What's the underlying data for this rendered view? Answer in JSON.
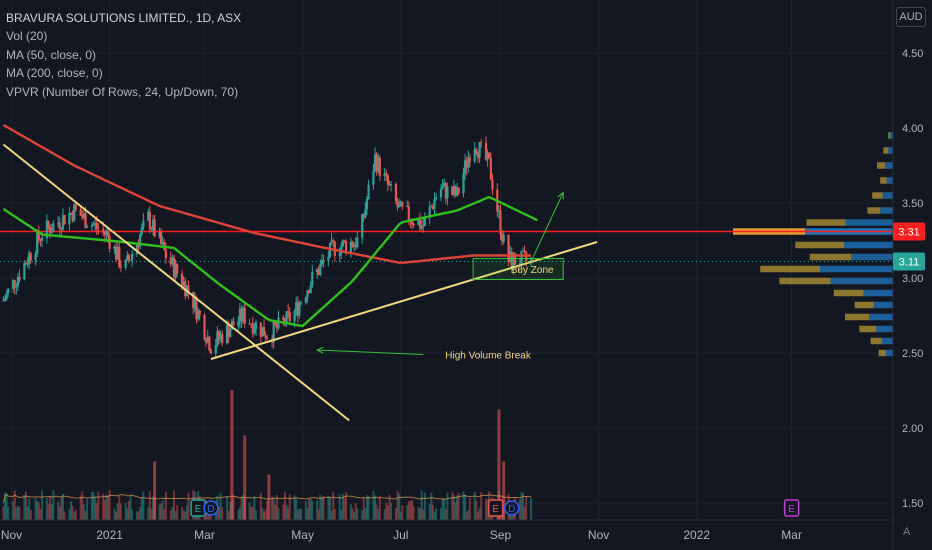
{
  "legend": {
    "title": "BRAVURA SOLUTIONS LIMITED., 1D, ASX",
    "lines": [
      "Vol (20)",
      "MA (50, close, 0)",
      "MA (200, close, 0)",
      "VPVR (Number Of Rows, 24, Up/Down, 70)"
    ]
  },
  "currency": "AUD",
  "auto_label": "A",
  "colors": {
    "background": "#131722",
    "up": "#26a69a",
    "down": "#ef5350",
    "ma50": "#2ec21a",
    "ma200": "#e04538",
    "drawing": "#f2d77e",
    "resistance": "#ff1f1f",
    "annotation_green": "#35c335",
    "vpvr_up": "#1e78c2",
    "vpvr_down": "#c4a032",
    "vpvr_poc": "#f0a030"
  },
  "chart_data": {
    "type": "candlestick",
    "x_ticks": [
      "Nov",
      "2021",
      "Mar",
      "May",
      "Jul",
      "Sep",
      "Nov",
      "2022",
      "Mar"
    ],
    "y_ticks": [
      "4.50",
      "4.00",
      "3.50",
      "3.00",
      "2.50",
      "2.00",
      "1.50"
    ],
    "ylim": [
      1.42,
      4.82
    ],
    "price_labels": [
      {
        "text": "3.31",
        "value": 3.31,
        "color": "#ff1f1f"
      },
      {
        "text": "3.11",
        "value": 3.11,
        "color": "#26a69a"
      }
    ],
    "horizontal_line": 3.31,
    "last_price": 3.11,
    "key_points": [
      {
        "date": "2020-10-27",
        "close": 2.85
      },
      {
        "date": "2020-11-20",
        "close": 3.3
      },
      {
        "date": "2020-12-10",
        "close": 3.45
      },
      {
        "date": "2020-12-31",
        "close": 3.28
      },
      {
        "date": "2021-01-10",
        "close": 3.05
      },
      {
        "date": "2021-01-25",
        "close": 3.4
      },
      {
        "date": "2021-02-05",
        "close": 3.15
      },
      {
        "date": "2021-02-20",
        "close": 2.9
      },
      {
        "date": "2021-03-05",
        "close": 2.55
      },
      {
        "date": "2021-03-25",
        "close": 2.75
      },
      {
        "date": "2021-04-10",
        "close": 2.62
      },
      {
        "date": "2021-04-25",
        "close": 2.75
      },
      {
        "date": "2021-05-05",
        "close": 2.96
      },
      {
        "date": "2021-05-20",
        "close": 3.2
      },
      {
        "date": "2021-06-05",
        "close": 3.25
      },
      {
        "date": "2021-06-15",
        "close": 3.8
      },
      {
        "date": "2021-06-30",
        "close": 3.45
      },
      {
        "date": "2021-07-15",
        "close": 3.35
      },
      {
        "date": "2021-07-25",
        "close": 3.6
      },
      {
        "date": "2021-08-05",
        "close": 3.55
      },
      {
        "date": "2021-08-15",
        "close": 3.92
      },
      {
        "date": "2021-08-25",
        "close": 3.75
      },
      {
        "date": "2021-09-05",
        "close": 3.12
      },
      {
        "date": "2021-09-20",
        "close": 3.11
      }
    ],
    "ma50": [
      {
        "date": "2020-10-27",
        "value": 3.46
      },
      {
        "date": "2020-11-20",
        "value": 3.29
      },
      {
        "date": "2021-01-10",
        "value": 3.24
      },
      {
        "date": "2021-02-10",
        "value": 3.2
      },
      {
        "date": "2021-03-10",
        "value": 2.96
      },
      {
        "date": "2021-04-10",
        "value": 2.72
      },
      {
        "date": "2021-05-01",
        "value": 2.68
      },
      {
        "date": "2021-06-01",
        "value": 2.98
      },
      {
        "date": "2021-07-01",
        "value": 3.37
      },
      {
        "date": "2021-08-05",
        "value": 3.45
      },
      {
        "date": "2021-08-25",
        "value": 3.54
      },
      {
        "date": "2021-09-25",
        "value": 3.38
      }
    ],
    "ma200": [
      {
        "date": "2020-10-27",
        "value": 4.02
      },
      {
        "date": "2020-12-10",
        "value": 3.75
      },
      {
        "date": "2021-02-01",
        "value": 3.48
      },
      {
        "date": "2021-04-01",
        "value": 3.3
      },
      {
        "date": "2021-05-15",
        "value": 3.2
      },
      {
        "date": "2021-07-01",
        "value": 3.1
      },
      {
        "date": "2021-08-15",
        "value": 3.15
      },
      {
        "date": "2021-09-20",
        "value": 3.15
      }
    ],
    "volume": {
      "average_line": true,
      "spikes": [
        {
          "date": "2021-01-29",
          "relative": 0.45
        },
        {
          "date": "2021-03-18",
          "relative": 1.0
        },
        {
          "date": "2021-03-26",
          "relative": 0.65
        },
        {
          "date": "2021-04-10",
          "relative": 0.35
        },
        {
          "date": "2021-08-31",
          "relative": 0.85
        },
        {
          "date": "2021-09-03",
          "relative": 0.45
        }
      ]
    },
    "vpvr": {
      "rows": 24,
      "split": "Up/Down",
      "bins": [
        {
          "price": 3.95,
          "total": 0.03,
          "up_share": 0.6
        },
        {
          "price": 3.85,
          "total": 0.06,
          "up_share": 0.5
        },
        {
          "price": 3.75,
          "total": 0.1,
          "up_share": 0.5
        },
        {
          "price": 3.65,
          "total": 0.08,
          "up_share": 0.5
        },
        {
          "price": 3.55,
          "total": 0.13,
          "up_share": 0.5
        },
        {
          "price": 3.45,
          "total": 0.16,
          "up_share": 0.5
        },
        {
          "price": 3.37,
          "total": 0.54,
          "up_share": 0.55
        },
        {
          "price": 3.31,
          "total": 1.0,
          "up_share": 0.55
        },
        {
          "price": 3.22,
          "total": 0.61,
          "up_share": 0.5
        },
        {
          "price": 3.14,
          "total": 0.52,
          "up_share": 0.5
        },
        {
          "price": 3.06,
          "total": 0.83,
          "up_share": 0.55
        },
        {
          "price": 2.98,
          "total": 0.71,
          "up_share": 0.55
        },
        {
          "price": 2.9,
          "total": 0.37,
          "up_share": 0.5
        },
        {
          "price": 2.82,
          "total": 0.24,
          "up_share": 0.5
        },
        {
          "price": 2.74,
          "total": 0.3,
          "up_share": 0.5
        },
        {
          "price": 2.66,
          "total": 0.21,
          "up_share": 0.5
        },
        {
          "price": 2.58,
          "total": 0.14,
          "up_share": 0.5
        },
        {
          "price": 2.5,
          "total": 0.09,
          "up_share": 0.5
        }
      ]
    },
    "drawings": [
      {
        "type": "trendline",
        "name": "descending",
        "from": {
          "date": "2020-10-27",
          "price": 3.89
        },
        "to": {
          "date": "2021-05-30",
          "price": 2.05
        }
      },
      {
        "type": "trendline",
        "name": "ascending",
        "from": {
          "date": "2021-03-05",
          "price": 2.46
        },
        "to": {
          "date": "2021-10-31",
          "price": 3.24
        }
      },
      {
        "type": "rectangle",
        "name": "buy-zone",
        "from": {
          "date": "2021-08-15",
          "price": 3.13
        },
        "to": {
          "date": "2021-10-10",
          "price": 2.99
        },
        "label": "Buy Zone"
      },
      {
        "type": "arrow",
        "name": "breakout",
        "from": {
          "date": "2021-09-20",
          "price": 3.11
        },
        "to": {
          "date": "2021-10-10",
          "price": 3.57
        }
      },
      {
        "type": "arrow",
        "name": "volume-break",
        "from": {
          "date": "2021-07-15",
          "price": 2.49
        },
        "to": {
          "date": "2021-05-10",
          "price": 2.52
        },
        "label": "High Volume Break"
      }
    ],
    "events": [
      {
        "date": "2021-02-25",
        "label": "E"
      },
      {
        "date": "2021-03-05",
        "label": "D"
      },
      {
        "date": "2021-08-29",
        "label": "E"
      },
      {
        "date": "2021-09-08",
        "label": "D"
      },
      {
        "date": "2022-03-01",
        "label": "E"
      }
    ]
  }
}
